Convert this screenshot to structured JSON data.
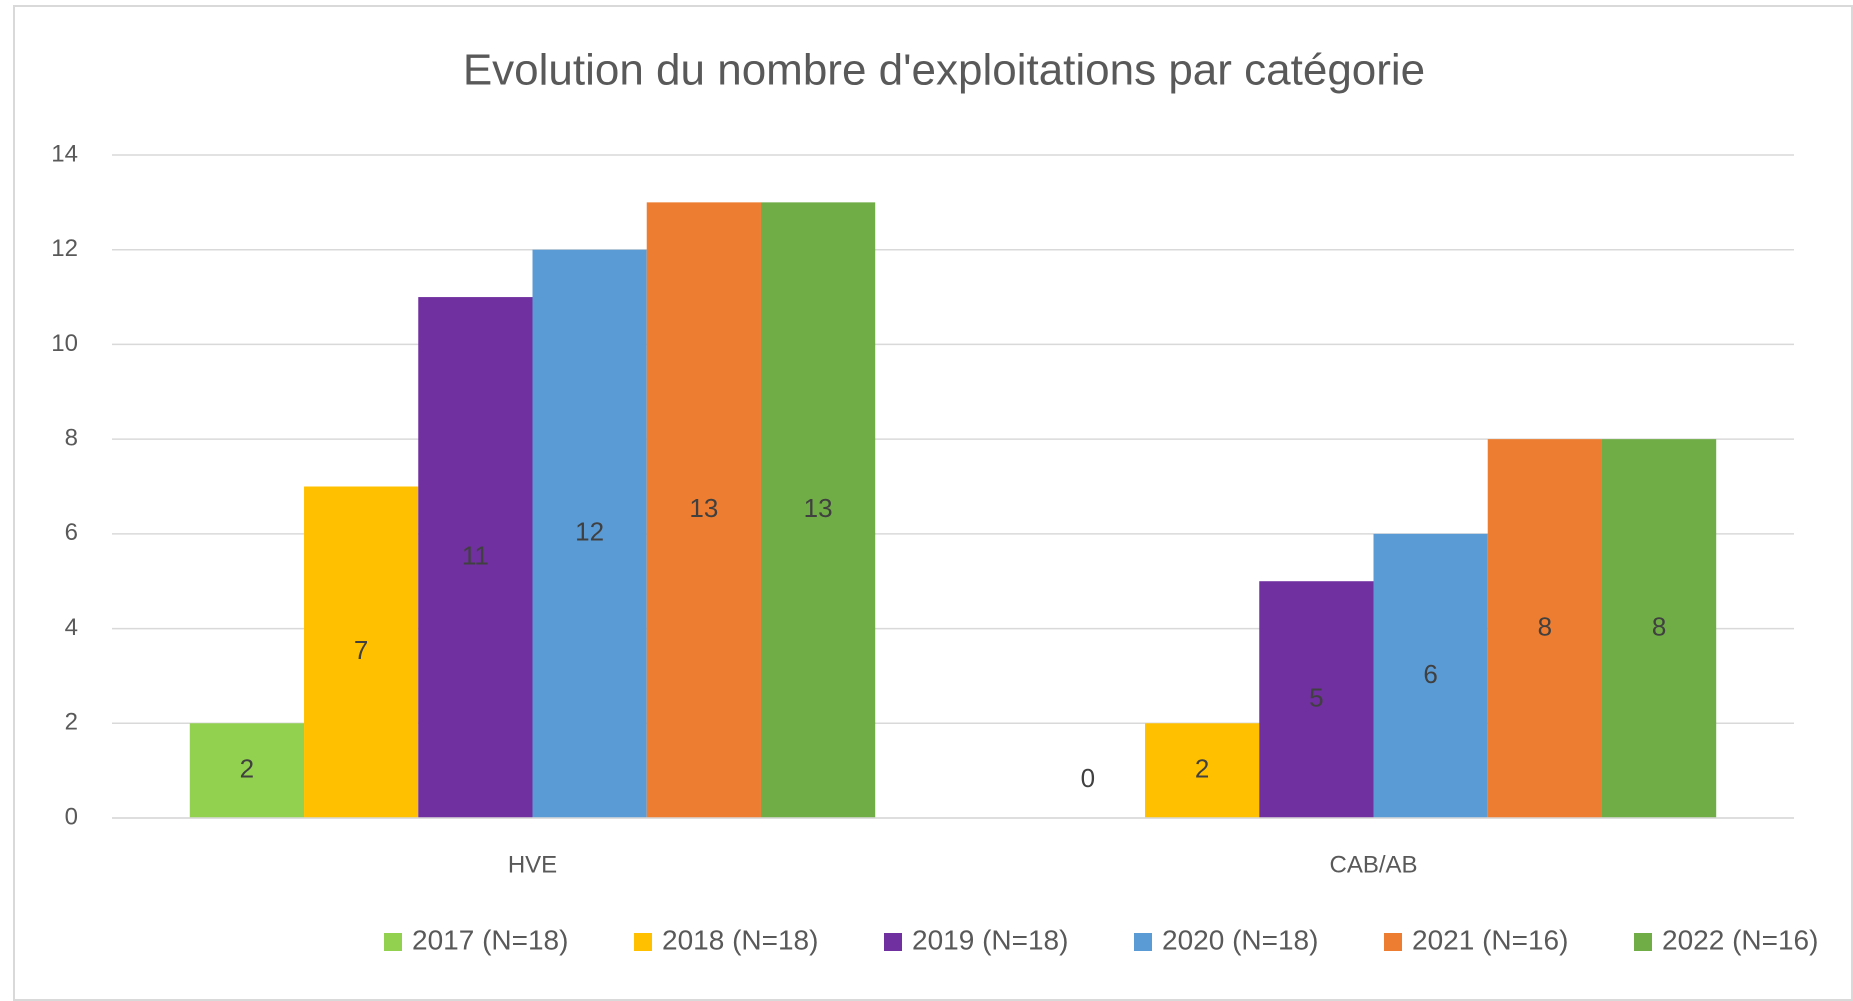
{
  "chart_data": {
    "type": "bar",
    "title": "Evolution du nombre d'exploitations par catégorie",
    "categories": [
      "HVE",
      "CAB/AB"
    ],
    "series": [
      {
        "name": "2017 (N=18)",
        "color": "#92d050",
        "values": [
          2,
          0
        ]
      },
      {
        "name": "2018 (N=18)",
        "color": "#ffc000",
        "values": [
          7,
          2
        ]
      },
      {
        "name": "2019 (N=18)",
        "color": "#7030a0",
        "values": [
          11,
          5
        ]
      },
      {
        "name": "2020 (N=18)",
        "color": "#5b9bd5",
        "values": [
          12,
          6
        ]
      },
      {
        "name": "2021 (N=16)",
        "color": "#ed7d31",
        "values": [
          13,
          8
        ]
      },
      {
        "name": "2022 (N=16)",
        "color": "#70ad47",
        "values": [
          13,
          8
        ]
      }
    ],
    "ylim": [
      0,
      14
    ],
    "yticks": [
      0,
      2,
      4,
      6,
      8,
      10,
      12,
      14
    ],
    "grid": true,
    "legend": "bottom"
  }
}
